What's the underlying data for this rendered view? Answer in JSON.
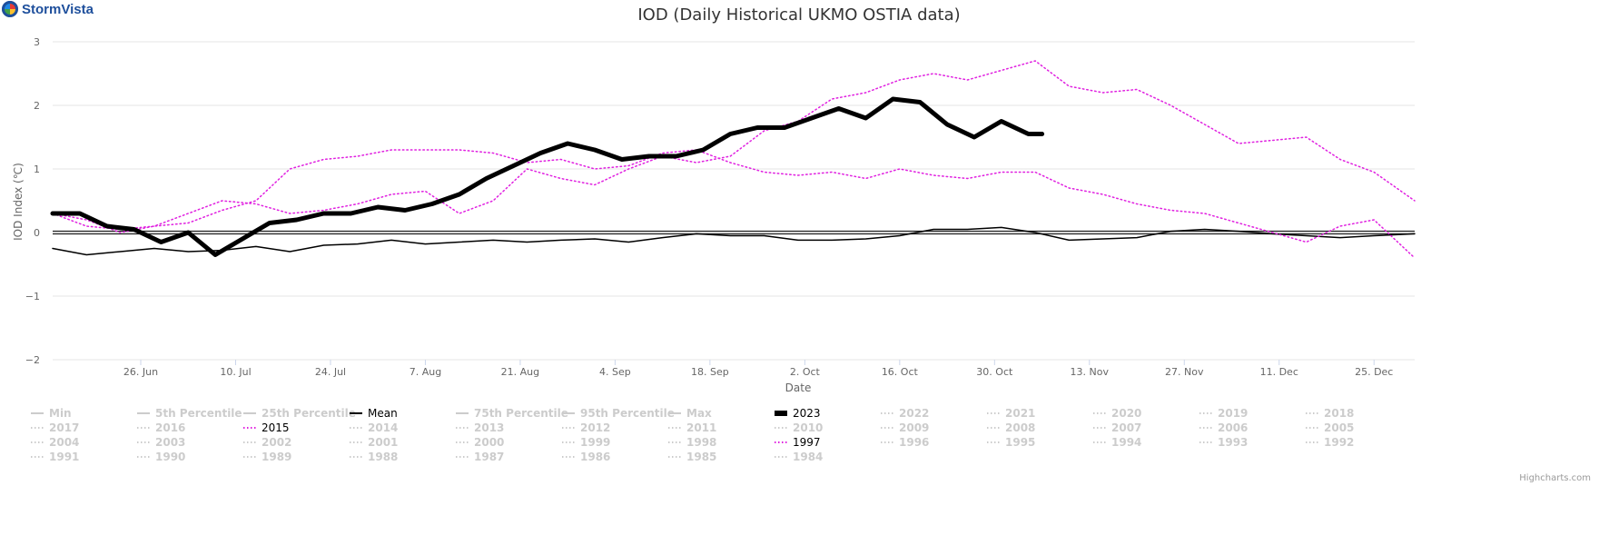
{
  "brand": {
    "name": "StormVista",
    "icon": "stormvista-logo-icon"
  },
  "credits": "Highcharts.com",
  "chart_data": {
    "type": "line",
    "title": "IOD (Daily Historical UKMO OSTIA data)",
    "xlabel": "Date",
    "ylabel": "IOD Index (℃)",
    "x_ticks": [
      "26. Jun",
      "10. Jul",
      "24. Jul",
      "7. Aug",
      "21. Aug",
      "4. Sep",
      "18. Sep",
      "2. Oct",
      "16. Oct",
      "30. Oct",
      "13. Nov",
      "27. Nov",
      "11. Dec",
      "25. Dec"
    ],
    "x_range": [
      "2000-06-13",
      "2000-12-31"
    ],
    "ylim": [
      -2,
      3
    ],
    "y_ticks": [
      3,
      2,
      1,
      0,
      -1,
      -2
    ],
    "grid": true,
    "legend_position": "bottom",
    "series": [
      {
        "name": "Mean",
        "color": "#000000",
        "style": "solid",
        "width": 1.5,
        "x": [
          "2000-06-13",
          "2000-06-18",
          "2000-06-23",
          "2000-06-28",
          "2000-07-03",
          "2000-07-08",
          "2000-07-13",
          "2000-07-18",
          "2000-07-23",
          "2000-07-28",
          "2000-08-02",
          "2000-08-07",
          "2000-08-12",
          "2000-08-17",
          "2000-08-22",
          "2000-08-27",
          "2000-09-01",
          "2000-09-06",
          "2000-09-11",
          "2000-09-16",
          "2000-09-21",
          "2000-09-26",
          "2000-10-01",
          "2000-10-06",
          "2000-10-11",
          "2000-10-16",
          "2000-10-21",
          "2000-10-26",
          "2000-10-31",
          "2000-11-05",
          "2000-11-10",
          "2000-11-15",
          "2000-11-20",
          "2000-11-25",
          "2000-11-30",
          "2000-12-05",
          "2000-12-10",
          "2000-12-15",
          "2000-12-20",
          "2000-12-25",
          "2000-12-31"
        ],
        "y": [
          -0.25,
          -0.35,
          -0.3,
          -0.25,
          -0.3,
          -0.28,
          -0.22,
          -0.3,
          -0.2,
          -0.18,
          -0.12,
          -0.18,
          -0.15,
          -0.12,
          -0.15,
          -0.12,
          -0.1,
          -0.15,
          -0.08,
          -0.02,
          -0.05,
          -0.05,
          -0.12,
          -0.12,
          -0.1,
          -0.05,
          0.05,
          0.05,
          0.08,
          0.0,
          -0.12,
          -0.1,
          -0.08,
          0.02,
          0.05,
          0.02,
          -0.02,
          -0.05,
          -0.08,
          -0.05,
          -0.02
        ]
      },
      {
        "name": "2023",
        "color": "#000000",
        "style": "solid",
        "width": 5,
        "x": [
          "2000-06-13",
          "2000-06-17",
          "2000-06-21",
          "2000-06-25",
          "2000-06-29",
          "2000-07-03",
          "2000-07-07",
          "2000-07-11",
          "2000-07-15",
          "2000-07-19",
          "2000-07-23",
          "2000-07-27",
          "2000-07-31",
          "2000-08-04",
          "2000-08-08",
          "2000-08-12",
          "2000-08-16",
          "2000-08-20",
          "2000-08-24",
          "2000-08-28",
          "2000-09-01",
          "2000-09-05",
          "2000-09-09",
          "2000-09-13",
          "2000-09-17",
          "2000-09-21",
          "2000-09-25",
          "2000-09-29",
          "2000-10-03",
          "2000-10-07",
          "2000-10-11",
          "2000-10-15",
          "2000-10-19",
          "2000-10-23",
          "2000-10-27",
          "2000-10-31",
          "2000-11-04",
          "2000-11-06"
        ],
        "y": [
          0.3,
          0.3,
          0.1,
          0.05,
          -0.15,
          0.0,
          -0.35,
          -0.1,
          0.15,
          0.2,
          0.3,
          0.3,
          0.4,
          0.35,
          0.45,
          0.6,
          0.85,
          1.05,
          1.25,
          1.4,
          1.3,
          1.15,
          1.2,
          1.2,
          1.3,
          1.55,
          1.65,
          1.65,
          1.8,
          1.95,
          1.8,
          2.1,
          2.05,
          1.7,
          1.5,
          1.75,
          1.55,
          1.55
        ]
      },
      {
        "name": "2015",
        "color": "#e020e0",
        "style": "dotted",
        "width": 1.5,
        "x": [
          "2000-06-13",
          "2000-06-18",
          "2000-06-23",
          "2000-06-28",
          "2000-07-03",
          "2000-07-08",
          "2000-07-13",
          "2000-07-18",
          "2000-07-23",
          "2000-07-28",
          "2000-08-02",
          "2000-08-07",
          "2000-08-12",
          "2000-08-17",
          "2000-08-22",
          "2000-08-27",
          "2000-09-01",
          "2000-09-06",
          "2000-09-11",
          "2000-09-16",
          "2000-09-21",
          "2000-09-26",
          "2000-10-01",
          "2000-10-06",
          "2000-10-11",
          "2000-10-16",
          "2000-10-21",
          "2000-10-26",
          "2000-10-31",
          "2000-11-05",
          "2000-11-10",
          "2000-11-15",
          "2000-11-20",
          "2000-11-25",
          "2000-11-30",
          "2000-12-05",
          "2000-12-10",
          "2000-12-15",
          "2000-12-20",
          "2000-12-25",
          "2000-12-31"
        ],
        "y": [
          0.3,
          0.2,
          0.0,
          0.1,
          0.15,
          0.35,
          0.5,
          1.0,
          1.15,
          1.2,
          1.3,
          1.3,
          1.3,
          1.25,
          1.1,
          1.15,
          1.0,
          1.05,
          1.25,
          1.3,
          1.1,
          0.95,
          0.9,
          0.95,
          0.85,
          1.0,
          0.9,
          0.85,
          0.95,
          0.95,
          0.7,
          0.6,
          0.45,
          0.35,
          0.3,
          0.15,
          0.0,
          -0.15,
          0.1,
          0.2,
          -0.4
        ]
      },
      {
        "name": "1997",
        "color": "#e020e0",
        "style": "dotted",
        "width": 1.5,
        "x": [
          "2000-06-13",
          "2000-06-18",
          "2000-06-23",
          "2000-06-28",
          "2000-07-03",
          "2000-07-08",
          "2000-07-13",
          "2000-07-18",
          "2000-07-23",
          "2000-07-28",
          "2000-08-02",
          "2000-08-07",
          "2000-08-12",
          "2000-08-17",
          "2000-08-22",
          "2000-08-27",
          "2000-09-01",
          "2000-09-06",
          "2000-09-11",
          "2000-09-16",
          "2000-09-21",
          "2000-09-26",
          "2000-10-01",
          "2000-10-06",
          "2000-10-11",
          "2000-10-16",
          "2000-10-21",
          "2000-10-26",
          "2000-10-31",
          "2000-11-05",
          "2000-11-10",
          "2000-11-15",
          "2000-11-20",
          "2000-11-25",
          "2000-11-30",
          "2000-12-05",
          "2000-12-10",
          "2000-12-15",
          "2000-12-20",
          "2000-12-25",
          "2000-12-31"
        ],
        "y": [
          0.3,
          0.1,
          0.05,
          0.1,
          0.3,
          0.5,
          0.45,
          0.3,
          0.35,
          0.45,
          0.6,
          0.65,
          0.3,
          0.5,
          1.0,
          0.85,
          0.75,
          1.0,
          1.2,
          1.1,
          1.2,
          1.6,
          1.75,
          2.1,
          2.2,
          2.4,
          2.5,
          2.4,
          2.55,
          2.7,
          2.3,
          2.2,
          2.25,
          2.0,
          1.7,
          1.4,
          1.45,
          1.5,
          1.15,
          0.95,
          0.5
        ]
      }
    ]
  },
  "legend": [
    {
      "label": "Min",
      "active": false,
      "style": "solid"
    },
    {
      "label": "5th Percentile",
      "active": false,
      "style": "solid"
    },
    {
      "label": "25th Percentile",
      "active": false,
      "style": "solid"
    },
    {
      "label": "Mean",
      "active": true,
      "style": "solid",
      "color": "#000000"
    },
    {
      "label": "75th Percentile",
      "active": false,
      "style": "solid"
    },
    {
      "label": "95th Percentile",
      "active": false,
      "style": "solid"
    },
    {
      "label": "Max",
      "active": false,
      "style": "solid"
    },
    {
      "label": "2023",
      "active": true,
      "style": "thick",
      "color": "#000000"
    },
    {
      "label": "2022",
      "active": false,
      "style": "dotted"
    },
    {
      "label": "2021",
      "active": false,
      "style": "dotted"
    },
    {
      "label": "2020",
      "active": false,
      "style": "dotted"
    },
    {
      "label": "2019",
      "active": false,
      "style": "dotted"
    },
    {
      "label": "2018",
      "active": false,
      "style": "dotted"
    },
    {
      "label": "2017",
      "active": false,
      "style": "dotted"
    },
    {
      "label": "2016",
      "active": false,
      "style": "dotted"
    },
    {
      "label": "2015",
      "active": true,
      "style": "dotted",
      "color": "#e020e0"
    },
    {
      "label": "2014",
      "active": false,
      "style": "dotted"
    },
    {
      "label": "2013",
      "active": false,
      "style": "dotted"
    },
    {
      "label": "2012",
      "active": false,
      "style": "dotted"
    },
    {
      "label": "2011",
      "active": false,
      "style": "dotted"
    },
    {
      "label": "2010",
      "active": false,
      "style": "dotted"
    },
    {
      "label": "2009",
      "active": false,
      "style": "dotted"
    },
    {
      "label": "2008",
      "active": false,
      "style": "dotted"
    },
    {
      "label": "2007",
      "active": false,
      "style": "dotted"
    },
    {
      "label": "2006",
      "active": false,
      "style": "dotted"
    },
    {
      "label": "2005",
      "active": false,
      "style": "dotted"
    },
    {
      "label": "2004",
      "active": false,
      "style": "dotted"
    },
    {
      "label": "2003",
      "active": false,
      "style": "dotted"
    },
    {
      "label": "2002",
      "active": false,
      "style": "dotted"
    },
    {
      "label": "2001",
      "active": false,
      "style": "dotted"
    },
    {
      "label": "2000",
      "active": false,
      "style": "dotted"
    },
    {
      "label": "1999",
      "active": false,
      "style": "dotted"
    },
    {
      "label": "1998",
      "active": false,
      "style": "dotted"
    },
    {
      "label": "1997",
      "active": true,
      "style": "dotted",
      "color": "#e020e0"
    },
    {
      "label": "1996",
      "active": false,
      "style": "dotted"
    },
    {
      "label": "1995",
      "active": false,
      "style": "dotted"
    },
    {
      "label": "1994",
      "active": false,
      "style": "dotted"
    },
    {
      "label": "1993",
      "active": false,
      "style": "dotted"
    },
    {
      "label": "1992",
      "active": false,
      "style": "dotted"
    },
    {
      "label": "1991",
      "active": false,
      "style": "dotted"
    },
    {
      "label": "1990",
      "active": false,
      "style": "dotted"
    },
    {
      "label": "1989",
      "active": false,
      "style": "dotted"
    },
    {
      "label": "1988",
      "active": false,
      "style": "dotted"
    },
    {
      "label": "1987",
      "active": false,
      "style": "dotted"
    },
    {
      "label": "1986",
      "active": false,
      "style": "dotted"
    },
    {
      "label": "1985",
      "active": false,
      "style": "dotted"
    },
    {
      "label": "1984",
      "active": false,
      "style": "dotted"
    }
  ],
  "colors": {
    "inactive": "#cccccc",
    "grid": "#e6e6e6",
    "highlight": "#e020e0"
  }
}
